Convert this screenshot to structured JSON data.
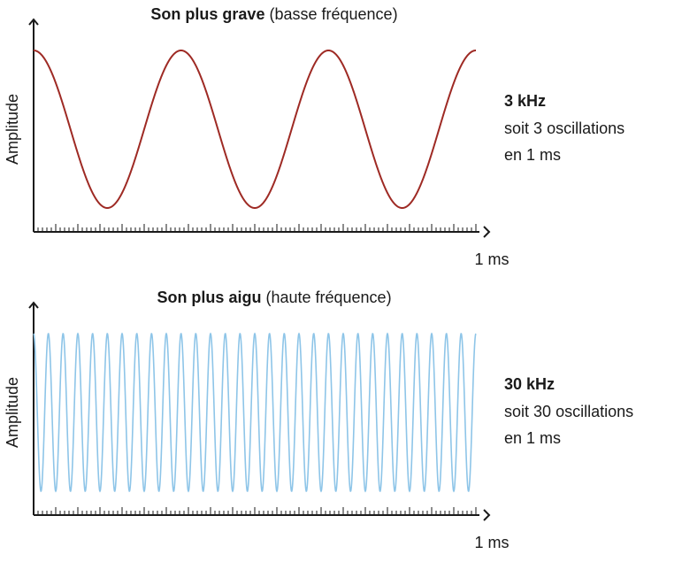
{
  "panels": [
    {
      "title_bold": "Son plus grave",
      "title_rest": "(basse fréquence)",
      "y_label": "Amplitude",
      "x_label": "1 ms",
      "frequency": "3 kHz",
      "line1": {
        "prefix": "soit",
        "count": 3,
        "suffix": "oscillations"
      },
      "line2": "en 1 ms",
      "color": "#9e2a24"
    },
    {
      "title_bold": "Son plus aigu",
      "title_rest": "(haute fréquence)",
      "y_label": "Amplitude",
      "x_label": "1 ms",
      "frequency": "30 kHz",
      "line1": {
        "prefix": "soit",
        "count": 30,
        "suffix": "oscillations"
      },
      "line2": "en 1 ms",
      "color": "#8ec5e8"
    }
  ]
}
